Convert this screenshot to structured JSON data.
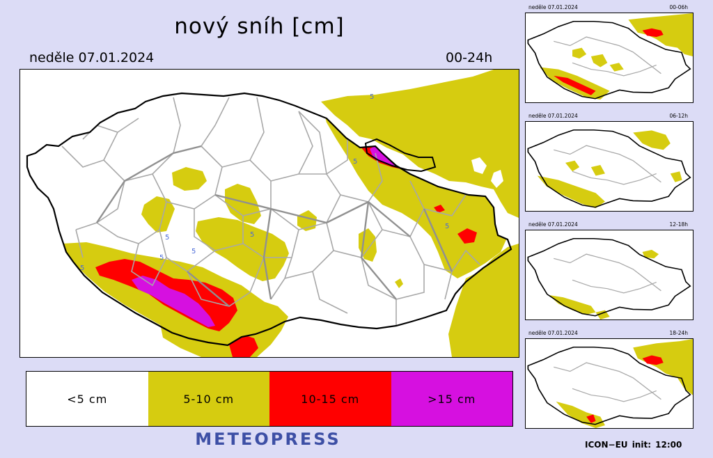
{
  "header": {
    "title": "nový sníh [cm]",
    "date": "neděle 07.01.2024",
    "period": "00-24h"
  },
  "map": {
    "contour_labels": [
      "5",
      "5",
      "5",
      "5",
      "5",
      "5",
      "5",
      "5"
    ],
    "colors": {
      "background": "#ffffff",
      "snow_5_10": "#d6cc10",
      "snow_10_15": "#ff0000",
      "snow_gt_15": "#d610e0",
      "border": "#000000",
      "districts": "#a8a8a8",
      "contour": "#4a6ad8"
    }
  },
  "legend": [
    {
      "label": "<5 cm",
      "color": "#ffffff"
    },
    {
      "label": "5-10 cm",
      "color": "#d6cc10"
    },
    {
      "label": "10-15 cm",
      "color": "#ff0000"
    },
    {
      "label": ">15 cm",
      "color": "#d610e0"
    }
  ],
  "mini_maps": [
    {
      "date": "neděle 07.01.2024",
      "period": "00-06h"
    },
    {
      "date": "neděle 07.01.2024",
      "period": "06-12h"
    },
    {
      "date": "neděle 07.01.2024",
      "period": "12-18h"
    },
    {
      "date": "neděle 07.01.2024",
      "period": "18-24h"
    }
  ],
  "footer": {
    "brand": "METEOPRESS",
    "model_info": "ICON−EU  init:  12:00"
  }
}
